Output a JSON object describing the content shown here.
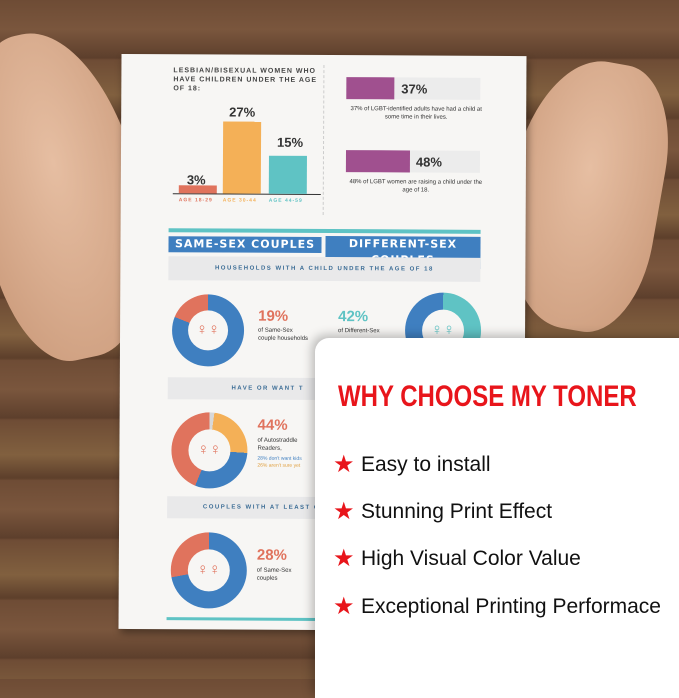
{
  "infographic": {
    "bar_caption": "LESBIAN/BISEXUAL WOMEN WHO HAVE CHILDREN UNDER THE AGE OF 18:",
    "bars": [
      {
        "label": "AGE 18-29",
        "value": "3%",
        "color": "#e0735d"
      },
      {
        "label": "AGE 30-44",
        "value": "27%",
        "color": "#f4b057"
      },
      {
        "label": "AGE 44-59",
        "value": "15%",
        "color": "#5fc3c4"
      }
    ],
    "stats": [
      {
        "value": "37%",
        "text": "37% of LGBT-identified adults have had a child at some time in their lives."
      },
      {
        "value": "48%",
        "text": "48% of LGBT women are raising a child under the age of 18."
      }
    ],
    "headers": {
      "same": "SAME-SEX COUPLES",
      "different": "DIFFERENT-SEX COUPLES"
    },
    "band1": "HOUSEHOLDS WITH A CHILD UNDER THE AGE OF 18",
    "d1": {
      "value": "19%",
      "text1": "of Same-Sex",
      "text2": "couple households"
    },
    "d2": {
      "value": "42%",
      "text1": "of Different-Sex"
    },
    "band2": "HAVE OR WANT T",
    "d3": {
      "value": "44%",
      "text1": "of Autostraddle",
      "text2": "Readers,",
      "note1": "28% don't want kids",
      "note2": "26% aren't sure yet"
    },
    "band3": "COUPLES WITH AT LEAST ONE",
    "d4": {
      "value": "28%",
      "text1": "of Same-Sex",
      "text2": "couples"
    },
    "symbol": "♀♀"
  },
  "promo": {
    "title": "WHY CHOOSE MY TONER",
    "features": [
      "Easy to install",
      "Stunning Print Effect",
      "High Visual Color Value",
      "Exceptional Printing Performace"
    ],
    "accent": "#e8151b"
  }
}
